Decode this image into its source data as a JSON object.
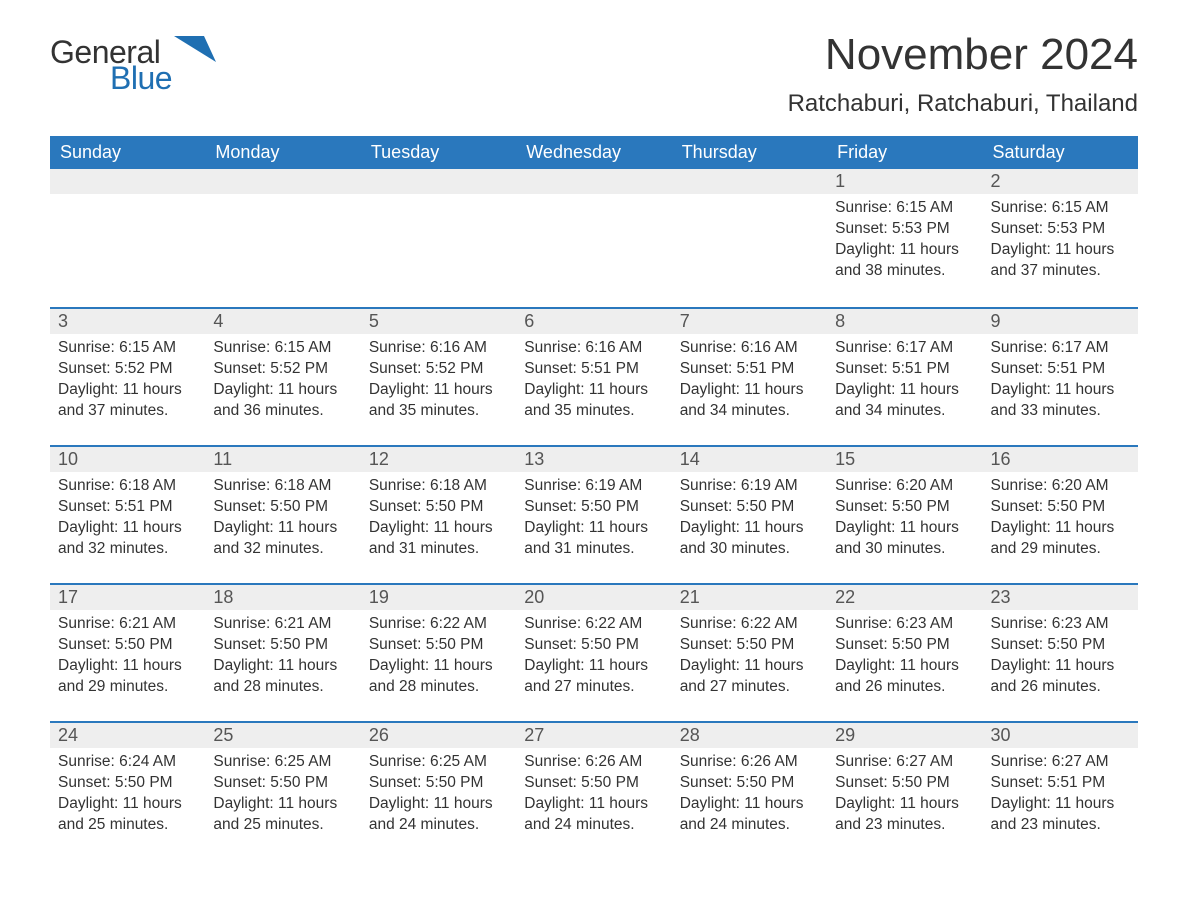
{
  "logo": {
    "word1": "General",
    "word2": "Blue",
    "mark_color": "#1f6fb2"
  },
  "title": "November 2024",
  "location": "Ratchaburi, Ratchaburi, Thailand",
  "colors": {
    "header_bg": "#2a78bd",
    "header_text": "#ffffff",
    "daybar_bg": "#eeeeee",
    "daybar_border": "#2a78bd",
    "body_text": "#333333",
    "background": "#ffffff"
  },
  "typography": {
    "title_fontsize": 44,
    "location_fontsize": 24,
    "header_fontsize": 18,
    "daynum_fontsize": 18,
    "body_fontsize": 15.5,
    "font_family": "Arial"
  },
  "weekdays": [
    "Sunday",
    "Monday",
    "Tuesday",
    "Wednesday",
    "Thursday",
    "Friday",
    "Saturday"
  ],
  "labels": {
    "sunrise": "Sunrise:",
    "sunset": "Sunset:",
    "daylight": "Daylight:"
  },
  "weeks": [
    [
      null,
      null,
      null,
      null,
      null,
      {
        "day": 1,
        "sunrise": "6:15 AM",
        "sunset": "5:53 PM",
        "daylight": "11 hours and 38 minutes."
      },
      {
        "day": 2,
        "sunrise": "6:15 AM",
        "sunset": "5:53 PM",
        "daylight": "11 hours and 37 minutes."
      }
    ],
    [
      {
        "day": 3,
        "sunrise": "6:15 AM",
        "sunset": "5:52 PM",
        "daylight": "11 hours and 37 minutes."
      },
      {
        "day": 4,
        "sunrise": "6:15 AM",
        "sunset": "5:52 PM",
        "daylight": "11 hours and 36 minutes."
      },
      {
        "day": 5,
        "sunrise": "6:16 AM",
        "sunset": "5:52 PM",
        "daylight": "11 hours and 35 minutes."
      },
      {
        "day": 6,
        "sunrise": "6:16 AM",
        "sunset": "5:51 PM",
        "daylight": "11 hours and 35 minutes."
      },
      {
        "day": 7,
        "sunrise": "6:16 AM",
        "sunset": "5:51 PM",
        "daylight": "11 hours and 34 minutes."
      },
      {
        "day": 8,
        "sunrise": "6:17 AM",
        "sunset": "5:51 PM",
        "daylight": "11 hours and 34 minutes."
      },
      {
        "day": 9,
        "sunrise": "6:17 AM",
        "sunset": "5:51 PM",
        "daylight": "11 hours and 33 minutes."
      }
    ],
    [
      {
        "day": 10,
        "sunrise": "6:18 AM",
        "sunset": "5:51 PM",
        "daylight": "11 hours and 32 minutes."
      },
      {
        "day": 11,
        "sunrise": "6:18 AM",
        "sunset": "5:50 PM",
        "daylight": "11 hours and 32 minutes."
      },
      {
        "day": 12,
        "sunrise": "6:18 AM",
        "sunset": "5:50 PM",
        "daylight": "11 hours and 31 minutes."
      },
      {
        "day": 13,
        "sunrise": "6:19 AM",
        "sunset": "5:50 PM",
        "daylight": "11 hours and 31 minutes."
      },
      {
        "day": 14,
        "sunrise": "6:19 AM",
        "sunset": "5:50 PM",
        "daylight": "11 hours and 30 minutes."
      },
      {
        "day": 15,
        "sunrise": "6:20 AM",
        "sunset": "5:50 PM",
        "daylight": "11 hours and 30 minutes."
      },
      {
        "day": 16,
        "sunrise": "6:20 AM",
        "sunset": "5:50 PM",
        "daylight": "11 hours and 29 minutes."
      }
    ],
    [
      {
        "day": 17,
        "sunrise": "6:21 AM",
        "sunset": "5:50 PM",
        "daylight": "11 hours and 29 minutes."
      },
      {
        "day": 18,
        "sunrise": "6:21 AM",
        "sunset": "5:50 PM",
        "daylight": "11 hours and 28 minutes."
      },
      {
        "day": 19,
        "sunrise": "6:22 AM",
        "sunset": "5:50 PM",
        "daylight": "11 hours and 28 minutes."
      },
      {
        "day": 20,
        "sunrise": "6:22 AM",
        "sunset": "5:50 PM",
        "daylight": "11 hours and 27 minutes."
      },
      {
        "day": 21,
        "sunrise": "6:22 AM",
        "sunset": "5:50 PM",
        "daylight": "11 hours and 27 minutes."
      },
      {
        "day": 22,
        "sunrise": "6:23 AM",
        "sunset": "5:50 PM",
        "daylight": "11 hours and 26 minutes."
      },
      {
        "day": 23,
        "sunrise": "6:23 AM",
        "sunset": "5:50 PM",
        "daylight": "11 hours and 26 minutes."
      }
    ],
    [
      {
        "day": 24,
        "sunrise": "6:24 AM",
        "sunset": "5:50 PM",
        "daylight": "11 hours and 25 minutes."
      },
      {
        "day": 25,
        "sunrise": "6:25 AM",
        "sunset": "5:50 PM",
        "daylight": "11 hours and 25 minutes."
      },
      {
        "day": 26,
        "sunrise": "6:25 AM",
        "sunset": "5:50 PM",
        "daylight": "11 hours and 24 minutes."
      },
      {
        "day": 27,
        "sunrise": "6:26 AM",
        "sunset": "5:50 PM",
        "daylight": "11 hours and 24 minutes."
      },
      {
        "day": 28,
        "sunrise": "6:26 AM",
        "sunset": "5:50 PM",
        "daylight": "11 hours and 24 minutes."
      },
      {
        "day": 29,
        "sunrise": "6:27 AM",
        "sunset": "5:50 PM",
        "daylight": "11 hours and 23 minutes."
      },
      {
        "day": 30,
        "sunrise": "6:27 AM",
        "sunset": "5:51 PM",
        "daylight": "11 hours and 23 minutes."
      }
    ]
  ]
}
